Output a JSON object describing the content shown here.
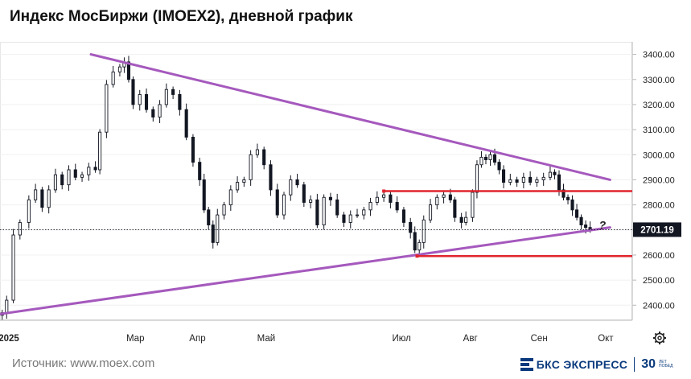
{
  "title": "Индекс МосБиржи (IMOEX2), дневной график",
  "source": "Источник: www.moex.com",
  "logo": {
    "brand": "БКС ЭКСПРЕСС",
    "years": "30",
    "years_caption": "ЛЕТ ПОБЕД"
  },
  "chart_data": {
    "type": "candlestick",
    "title": "Индекс МосБиржи (IMOEX2), дневной график",
    "ylim": [
      2340,
      3450
    ],
    "y_ticks": [
      2400,
      2500,
      2600,
      2700,
      2800,
      2900,
      3000,
      3100,
      3200,
      3300,
      3400
    ],
    "y_tick_labels": [
      "2400.00",
      "2500.00",
      "2600.00",
      "2700.00",
      "2800.00",
      "2900.00",
      "3000.00",
      "3100.00",
      "3200.00",
      "3300.00",
      "3400.00"
    ],
    "x_ticks": [
      {
        "label": "2025",
        "day": 0
      },
      {
        "label": "Мар",
        "day": 57
      },
      {
        "label": "Апр",
        "day": 85
      },
      {
        "label": "Май",
        "day": 116
      },
      {
        "label": "Июл",
        "day": 177
      },
      {
        "label": "Авг",
        "day": 208
      },
      {
        "label": "Сен",
        "day": 239
      },
      {
        "label": "Окт",
        "day": 269
      }
    ],
    "x_range_days": [
      -4,
      281
    ],
    "last_price": 2701.19,
    "last_price_label": "2701.19",
    "question_mark": "?",
    "colors": {
      "up": "#131722",
      "down": "#131722",
      "trendline": "#a559bd",
      "level": "#e0252f"
    },
    "close_series": [
      {
        "day": -3,
        "close": 2370
      },
      {
        "day": -1,
        "close": 2420
      },
      {
        "day": 2,
        "close": 2680
      },
      {
        "day": 5,
        "close": 2730
      },
      {
        "day": 9,
        "close": 2820
      },
      {
        "day": 12,
        "close": 2860
      },
      {
        "day": 15,
        "close": 2790
      },
      {
        "day": 18,
        "close": 2860
      },
      {
        "day": 21,
        "close": 2920
      },
      {
        "day": 24,
        "close": 2880
      },
      {
        "day": 27,
        "close": 2940
      },
      {
        "day": 30,
        "close": 2910
      },
      {
        "day": 33,
        "close": 2920
      },
      {
        "day": 36,
        "close": 2950
      },
      {
        "day": 39,
        "close": 2940
      },
      {
        "day": 41,
        "close": 3090
      },
      {
        "day": 44,
        "close": 3280
      },
      {
        "day": 47,
        "close": 3330
      },
      {
        "day": 50,
        "close": 3350
      },
      {
        "day": 52,
        "close": 3370
      },
      {
        "day": 54,
        "close": 3300
      },
      {
        "day": 56,
        "close": 3200
      },
      {
        "day": 59,
        "close": 3240
      },
      {
        "day": 62,
        "close": 3180
      },
      {
        "day": 65,
        "close": 3150
      },
      {
        "day": 68,
        "close": 3200
      },
      {
        "day": 71,
        "close": 3260
      },
      {
        "day": 74,
        "close": 3240
      },
      {
        "day": 77,
        "close": 3180
      },
      {
        "day": 80,
        "close": 3070
      },
      {
        "day": 83,
        "close": 2970
      },
      {
        "day": 86,
        "close": 2900
      },
      {
        "day": 88,
        "close": 2780
      },
      {
        "day": 90,
        "close": 2720
      },
      {
        "day": 92,
        "close": 2650
      },
      {
        "day": 94,
        "close": 2760
      },
      {
        "day": 97,
        "close": 2800
      },
      {
        "day": 100,
        "close": 2860
      },
      {
        "day": 103,
        "close": 2890
      },
      {
        "day": 106,
        "close": 2900
      },
      {
        "day": 109,
        "close": 3000
      },
      {
        "day": 112,
        "close": 3020
      },
      {
        "day": 115,
        "close": 2960
      },
      {
        "day": 118,
        "close": 2860
      },
      {
        "day": 121,
        "close": 2760
      },
      {
        "day": 124,
        "close": 2840
      },
      {
        "day": 127,
        "close": 2900
      },
      {
        "day": 130,
        "close": 2880
      },
      {
        "day": 133,
        "close": 2810
      },
      {
        "day": 136,
        "close": 2820
      },
      {
        "day": 139,
        "close": 2720
      },
      {
        "day": 142,
        "close": 2830
      },
      {
        "day": 145,
        "close": 2820
      },
      {
        "day": 148,
        "close": 2760
      },
      {
        "day": 151,
        "close": 2730
      },
      {
        "day": 154,
        "close": 2760
      },
      {
        "day": 157,
        "close": 2760
      },
      {
        "day": 160,
        "close": 2780
      },
      {
        "day": 163,
        "close": 2810
      },
      {
        "day": 166,
        "close": 2830
      },
      {
        "day": 169,
        "close": 2840
      },
      {
        "day": 172,
        "close": 2810
      },
      {
        "day": 175,
        "close": 2780
      },
      {
        "day": 178,
        "close": 2730
      },
      {
        "day": 181,
        "close": 2690
      },
      {
        "day": 183,
        "close": 2620
      },
      {
        "day": 185,
        "close": 2650
      },
      {
        "day": 187,
        "close": 2740
      },
      {
        "day": 190,
        "close": 2800
      },
      {
        "day": 193,
        "close": 2830
      },
      {
        "day": 196,
        "close": 2840
      },
      {
        "day": 199,
        "close": 2820
      },
      {
        "day": 201,
        "close": 2750
      },
      {
        "day": 204,
        "close": 2730
      },
      {
        "day": 206,
        "close": 2750
      },
      {
        "day": 209,
        "close": 2850
      },
      {
        "day": 211,
        "close": 2960
      },
      {
        "day": 213,
        "close": 2990
      },
      {
        "day": 215,
        "close": 2980
      },
      {
        "day": 217,
        "close": 3000
      },
      {
        "day": 219,
        "close": 2970
      },
      {
        "day": 221,
        "close": 2940
      },
      {
        "day": 223,
        "close": 2890
      },
      {
        "day": 226,
        "close": 2900
      },
      {
        "day": 229,
        "close": 2890
      },
      {
        "day": 232,
        "close": 2910
      },
      {
        "day": 235,
        "close": 2890
      },
      {
        "day": 238,
        "close": 2900
      },
      {
        "day": 241,
        "close": 2910
      },
      {
        "day": 244,
        "close": 2930
      },
      {
        "day": 246,
        "close": 2920
      },
      {
        "day": 248,
        "close": 2860
      },
      {
        "day": 250,
        "close": 2830
      },
      {
        "day": 252,
        "close": 2820
      },
      {
        "day": 254,
        "close": 2780
      },
      {
        "day": 256,
        "close": 2750
      },
      {
        "day": 258,
        "close": 2720
      },
      {
        "day": 260,
        "close": 2710
      },
      {
        "day": 262,
        "close": 2701
      }
    ],
    "trendlines": [
      {
        "name": "resistance",
        "from": {
          "day": 37,
          "value": 3400
        },
        "to": {
          "day": 271,
          "value": 2900
        }
      },
      {
        "name": "support",
        "from": {
          "day": -4,
          "value": 2365
        },
        "to": {
          "day": 271,
          "value": 2710
        }
      }
    ],
    "levels": [
      {
        "name": "upper",
        "value": 2855,
        "from_day": 169,
        "to_day": 281
      },
      {
        "name": "lower",
        "value": 2596,
        "from_day": 184,
        "to_day": 281
      }
    ]
  }
}
